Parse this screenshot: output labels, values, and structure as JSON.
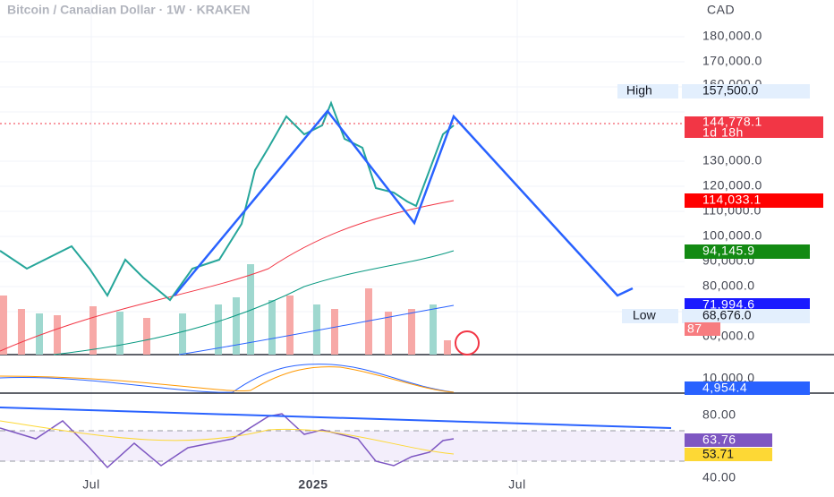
{
  "header": {
    "title": "Bitcoin / Canadian Dollar · 1W · KRAKEN",
    "currency": "CAD"
  },
  "price_axis": {
    "labels": [
      "180,000.0",
      "170,000.0",
      "160,000.0",
      "130,000.0",
      "120,000.0",
      "110,000.0",
      "100,000.0",
      "90,000.0",
      "80,000.0",
      "60,000.0"
    ]
  },
  "tags": {
    "high_label": "High",
    "high_value": "157,500.0",
    "last_price": "144,778.1",
    "countdown": "1d 18h",
    "ma_red": "114,033.1",
    "ma_green": "94,145.9",
    "ma_blue": "71,994.6",
    "low_label": "Low",
    "low_value": "68,676.0",
    "volume": "87"
  },
  "macd_pane": {
    "axis_label": "10,000.0",
    "value": "4,954.4"
  },
  "rsi_pane": {
    "axis_labels": [
      "80.00",
      "40.00"
    ],
    "rsi": "63.76",
    "rsi_ma": "53.71"
  },
  "time_axis": {
    "labels": [
      "Jul",
      "2025",
      "Jul"
    ]
  }
}
